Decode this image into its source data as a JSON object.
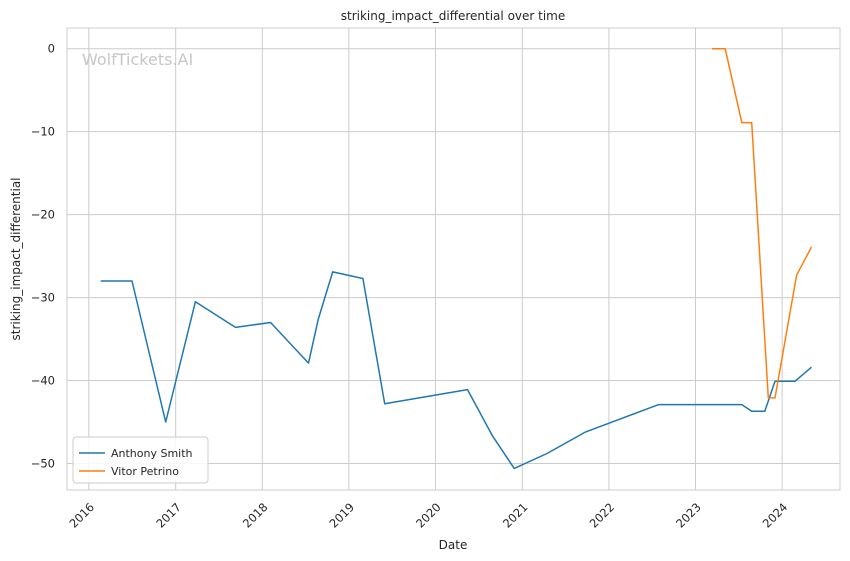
{
  "chart_data": {
    "type": "line",
    "title": "striking_impact_differential over time",
    "xlabel": "Date",
    "ylabel": "striking_impact_differential",
    "watermark": "WolfTickets.AI",
    "x_ticks": [
      "2016",
      "2017",
      "2018",
      "2019",
      "2020",
      "2021",
      "2022",
      "2023",
      "2024"
    ],
    "y_ticks": [
      0,
      -10,
      -20,
      -30,
      -40,
      -50
    ],
    "xlim": [
      "2015-10-01",
      "2024-09-01"
    ],
    "ylim": [
      -53.2,
      2.5
    ],
    "grid": true,
    "legend_position": "lower-left",
    "series": [
      {
        "name": "Anthony Smith",
        "color": "#1f77b4",
        "points": [
          [
            "2016-02-20",
            -28.0
          ],
          [
            "2016-07-01",
            -28.0
          ],
          [
            "2016-11-20",
            -45.0
          ],
          [
            "2017-03-25",
            -30.5
          ],
          [
            "2017-09-10",
            -33.6
          ],
          [
            "2018-02-05",
            -33.0
          ],
          [
            "2018-07-15",
            -37.9
          ],
          [
            "2018-08-25",
            -32.6
          ],
          [
            "2018-10-25",
            -26.9
          ],
          [
            "2019-03-01",
            -27.7
          ],
          [
            "2019-06-01",
            -42.8
          ],
          [
            "2020-05-15",
            -41.1
          ],
          [
            "2020-08-29",
            -46.7
          ],
          [
            "2020-11-28",
            -50.6
          ],
          [
            "2021-04-15",
            -48.8
          ],
          [
            "2021-09-25",
            -46.2
          ],
          [
            "2022-07-30",
            -42.9
          ],
          [
            "2023-07-15",
            -42.9
          ],
          [
            "2023-08-26",
            -43.7
          ],
          [
            "2023-10-20",
            -43.7
          ],
          [
            "2023-12-02",
            -40.1
          ],
          [
            "2024-02-24",
            -40.1
          ],
          [
            "2024-05-04",
            -38.4
          ]
        ]
      },
      {
        "name": "Vitor Petrino",
        "color": "#ff7f0e",
        "points": [
          [
            "2023-03-11",
            0.0
          ],
          [
            "2023-05-06",
            0.0
          ],
          [
            "2023-07-15",
            -8.9
          ],
          [
            "2023-08-26",
            -8.9
          ],
          [
            "2023-11-04",
            -42.1
          ],
          [
            "2023-12-02",
            -42.1
          ],
          [
            "2024-03-02",
            -27.3
          ],
          [
            "2024-05-04",
            -23.9
          ]
        ]
      }
    ]
  }
}
